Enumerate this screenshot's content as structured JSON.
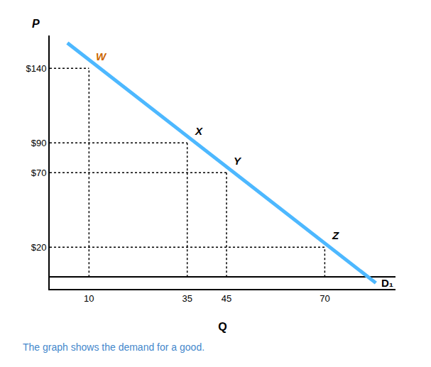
{
  "chart_data": {
    "type": "line",
    "caption": {
      "text": "The graph shows the demand for a good.",
      "color": "#4488cc"
    },
    "xlabel": "Q",
    "ylabel": "P",
    "xlim": [
      0,
      88
    ],
    "ylim": [
      -8,
      162
    ],
    "xticks": [
      10,
      35,
      45,
      70
    ],
    "yticks": [
      {
        "value": 20,
        "label": "$20"
      },
      {
        "value": 70,
        "label": "$70"
      },
      {
        "value": 90,
        "label": "$90"
      },
      {
        "value": 140,
        "label": "$140"
      }
    ],
    "grid": false,
    "series": [
      {
        "name": "D₁",
        "x": [
          4.5,
          83
        ],
        "values": [
          157,
          -4
        ],
        "color": "#4db8ff",
        "line_style": "solid"
      }
    ],
    "points": [
      {
        "label": "W",
        "x": 10,
        "y": 140,
        "color": "#cc6600",
        "line_style": "dotted"
      },
      {
        "label": "X",
        "x": 35,
        "y": 90,
        "color": "#000000",
        "line_style": "dotted"
      },
      {
        "label": "Y",
        "x": 45,
        "y": 70,
        "color": "#000000",
        "line_style": "dotted"
      },
      {
        "label": "Z",
        "x": 70,
        "y": 20,
        "color": "#000000",
        "line_style": "dotted"
      }
    ]
  }
}
